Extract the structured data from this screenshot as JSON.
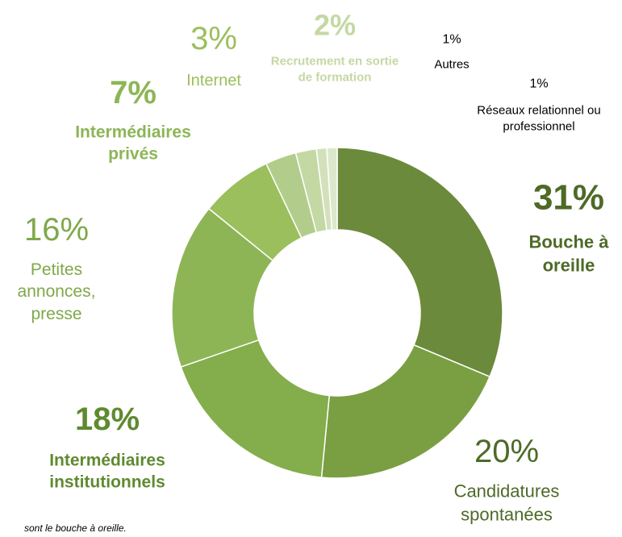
{
  "chart_data": {
    "type": "donut",
    "categories": [
      "Bouche à oreille",
      "Candidatures spontanées",
      "Intermédiaires institutionnels",
      "Petites annonces, presse",
      "Intermédiaires privés",
      "Internet",
      "Recrutement en sortie de formation",
      "Autres",
      "Réseaux relationnel ou professionnel"
    ],
    "values": [
      31,
      20,
      18,
      16,
      7,
      3,
      2,
      1,
      1
    ],
    "value_labels": [
      "31%",
      "20%",
      "18%",
      "16%",
      "7%",
      "3%",
      "2%",
      "1%",
      "1%"
    ],
    "colors": [
      "#6b8a3b",
      "#7a9f42",
      "#84ad4b",
      "#8db556",
      "#9bbf5d",
      "#b2cd8b",
      "#c4d8a4",
      "#d2e1bb",
      "#dce8cb"
    ],
    "label_colors": [
      "#4e6a27",
      "#4d6a27",
      "#5f8a30",
      "#7fa849",
      "#8db556",
      "#9bbf5d",
      "#c4d8a4",
      "#000000",
      "#000000"
    ],
    "label_bold": [
      true,
      false,
      true,
      false,
      true,
      false,
      true,
      false,
      false
    ],
    "note": "sont le bouche à oreille."
  }
}
